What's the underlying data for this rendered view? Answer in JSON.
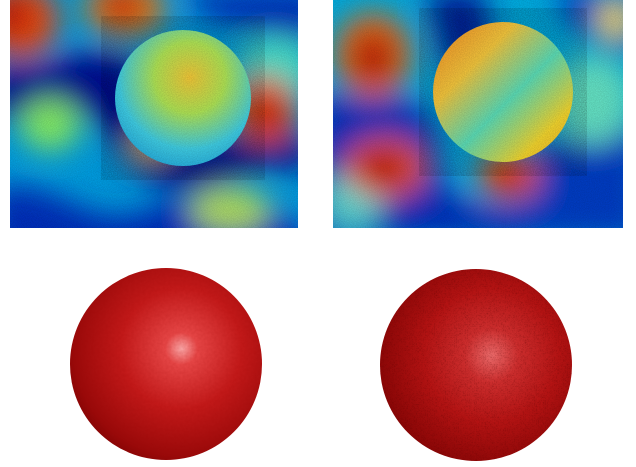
{
  "figure": {
    "panels": [
      {
        "id": "tl",
        "kind": "noisy-field-with-sphere"
      },
      {
        "id": "tr",
        "kind": "noisy-field-with-sphere"
      },
      {
        "id": "bl",
        "kind": "red-sphere-smooth"
      },
      {
        "id": "br",
        "kind": "red-sphere-rough"
      }
    ],
    "colors": {
      "background": "#ffffff",
      "colormap": [
        "#00008f",
        "#0040ff",
        "#00d0ff",
        "#7fff7f",
        "#ffe600",
        "#ff4000",
        "#c00000"
      ],
      "sphere_red": "#c41a1a"
    }
  }
}
